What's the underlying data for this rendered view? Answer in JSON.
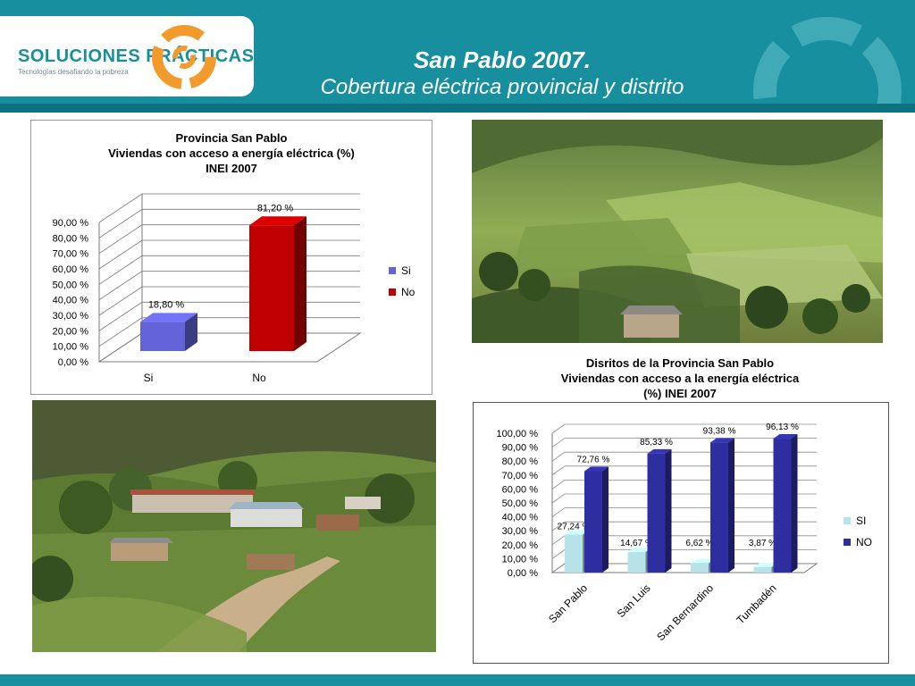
{
  "header": {
    "title_line1": "San Pablo 2007.",
    "title_line2": "Cobertura eléctrica provincial y distrito",
    "logo_name": "SOLUCIONES PRÁCTICAS",
    "logo_tagline": "Tecnologías desafiando la pobreza",
    "colors": {
      "primary": "#178f9e",
      "accent": "#f39a2c"
    }
  },
  "photos": [
    {
      "name": "rural-valley-landscape-photo"
    },
    {
      "name": "village-hillside-photo"
    }
  ],
  "chart_data": [
    {
      "type": "bar",
      "title": [
        "Provincia San Pablo",
        "Viviendas con acceso a energía eléctrica (%)",
        "INEI 2007"
      ],
      "categories": [
        "Si",
        "No"
      ],
      "values": [
        18.8,
        81.2
      ],
      "data_labels": [
        "18,80 %",
        "81,20 %"
      ],
      "colors": [
        "#6464d8",
        "#c00000"
      ],
      "y_ticks": [
        "0,00 %",
        "10,00 %",
        "20,00 %",
        "30,00 %",
        "40,00 %",
        "50,00 %",
        "60,00 %",
        "70,00 %",
        "80,00 %",
        "90,00 %"
      ],
      "ylim": [
        0,
        90
      ],
      "legend": [
        "Si",
        "No"
      ],
      "legend_position": "right",
      "style": "3d"
    },
    {
      "type": "bar",
      "title": [
        "Disritos de la Provincia San Pablo",
        "Viviendas con acceso a la energía eléctrica",
        "(%) INEI 2007"
      ],
      "categories": [
        "San Pablo",
        "San Luis",
        "San Bernardino",
        "Tumbadén"
      ],
      "series": [
        {
          "name": "SI",
          "values": [
            27.24,
            14.67,
            6.62,
            3.87
          ],
          "labels": [
            "27,24 %",
            "14,67 %",
            "6,62 %",
            "3,87 %"
          ],
          "color": "#b5e3e7"
        },
        {
          "name": "NO",
          "values": [
            72.76,
            85.33,
            93.38,
            96.13
          ],
          "labels": [
            "72,76 %",
            "85,33 %",
            "93,38 %",
            "96,13 %"
          ],
          "color": "#2e2ea0"
        }
      ],
      "y_ticks": [
        "0,00 %",
        "10,00 %",
        "20,00 %",
        "30,00 %",
        "40,00 %",
        "50,00 %",
        "60,00 %",
        "70,00 %",
        "80,00 %",
        "90,00 %",
        "100,00 %"
      ],
      "ylim": [
        0,
        100
      ],
      "legend_position": "right",
      "style": "3d"
    }
  ]
}
